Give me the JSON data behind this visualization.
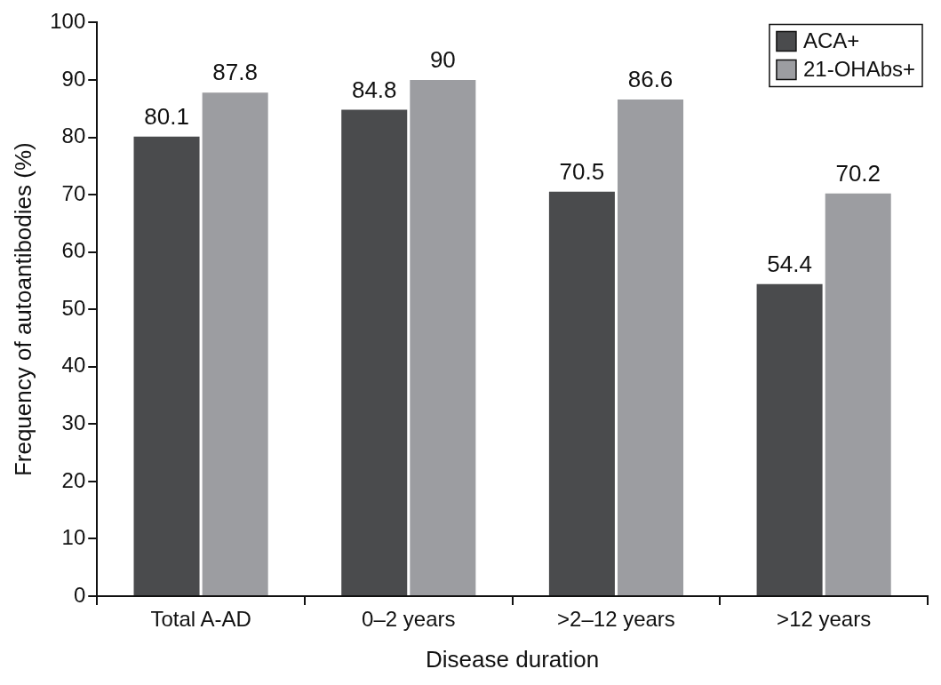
{
  "chart_data": {
    "type": "bar",
    "xlabel": "Disease duration",
    "ylabel": "Frequency of autoantibodies (%)",
    "categories": [
      "Total A-AD",
      "0–2 years",
      ">2–12 years",
      ">12 years"
    ],
    "series": [
      {
        "name": "ACA+",
        "color": "#4a4b4d",
        "values": [
          80.1,
          84.8,
          70.5,
          54.4
        ]
      },
      {
        "name": "21-OHAbs+",
        "color": "#9c9da1",
        "values": [
          87.8,
          90,
          86.6,
          70.2
        ]
      }
    ],
    "ylim": [
      0,
      100
    ],
    "yticks": [
      0,
      10,
      20,
      30,
      40,
      50,
      60,
      70,
      80,
      90,
      100
    ],
    "grid": false,
    "legend": "top right",
    "data_labels": true
  }
}
